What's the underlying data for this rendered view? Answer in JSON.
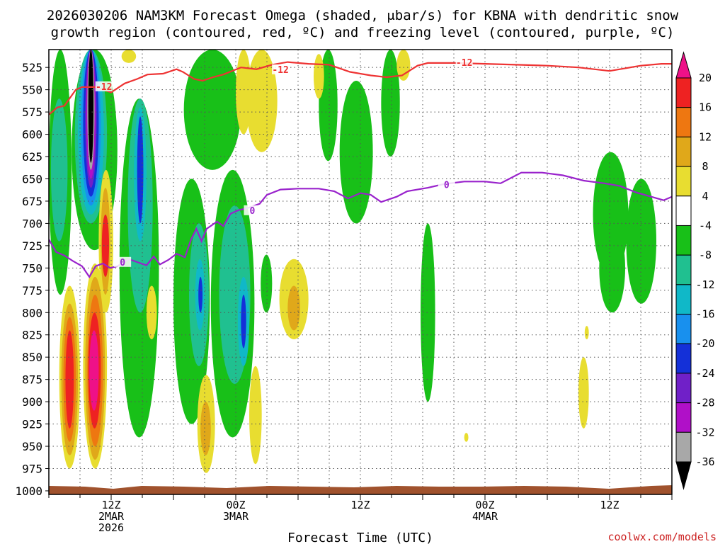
{
  "title": {
    "line1": "2026030206 NAM3KM Forecast Omega (shaded, μbar/s) for KBNA with dendritic snow",
    "line2": "growth region (contoured, red, ºC) and freezing level (contoured, purple, ºC)"
  },
  "credit": "coolwx.com/models",
  "chart_data": {
    "type": "heatmap",
    "title": "2026030206 NAM3KM Forecast Omega (shaded, μbar/s) for KBNA with dendritic snow growth region (contoured, red, ºC) and freezing level (contoured, purple, ºC)",
    "xlabel": "Forecast Time (UTC)",
    "ylabel": "",
    "x_range_hours": [
      0,
      60
    ],
    "x_ticks": [
      {
        "hour": 6,
        "lines": [
          "12Z",
          "2MAR",
          "2026"
        ]
      },
      {
        "hour": 18,
        "lines": [
          "00Z",
          "3MAR"
        ]
      },
      {
        "hour": 30,
        "lines": [
          "12Z"
        ]
      },
      {
        "hour": 42,
        "lines": [
          "00Z",
          "4MAR"
        ]
      },
      {
        "hour": 54,
        "lines": [
          "12Z"
        ]
      }
    ],
    "y_ticks": [
      525,
      550,
      575,
      600,
      625,
      650,
      675,
      700,
      725,
      750,
      775,
      800,
      825,
      850,
      875,
      900,
      925,
      950,
      975,
      1000
    ],
    "y_range_mb": [
      505,
      1004
    ],
    "grid": true,
    "colorbar": {
      "labels": [
        "20",
        "16",
        "12",
        "8",
        "4",
        "-4",
        "-8",
        "-12",
        "-16",
        "-20",
        "-24",
        "-28",
        "-32",
        "-36"
      ],
      "bands": [
        {
          "range": "> 20",
          "color": "#ee1188"
        },
        {
          "range": "16 to 20",
          "color": "#ee2222"
        },
        {
          "range": "12 to 16",
          "color": "#ee7711"
        },
        {
          "range": "8 to 12",
          "color": "#e0a81a"
        },
        {
          "range": "4 to 8",
          "color": "#e8dd30"
        },
        {
          "range": "-4 to 4",
          "color": "#ffffff"
        },
        {
          "range": "-8 to -4",
          "color": "#18c018"
        },
        {
          "range": "-12 to -8",
          "color": "#20c090"
        },
        {
          "range": "-16 to -12",
          "color": "#10b8c8"
        },
        {
          "range": "-20 to -16",
          "color": "#1890ee"
        },
        {
          "range": "-24 to -20",
          "color": "#1430d8"
        },
        {
          "range": "-28 to -24",
          "color": "#7020c8"
        },
        {
          "range": "-32 to -28",
          "color": "#b010c8"
        },
        {
          "range": "-36 to -32",
          "color": "#a8a8a8"
        },
        {
          "range": "< -36",
          "color": "#000000"
        }
      ]
    },
    "series": [
      {
        "name": "-12",
        "color": "#ee3333",
        "points": [
          [
            0,
            578
          ],
          [
            0.8,
            570
          ],
          [
            1.5,
            568
          ],
          [
            2.6,
            550
          ],
          [
            3.2,
            547
          ],
          [
            4.5,
            547
          ],
          [
            6.0,
            553
          ],
          [
            7.3,
            543
          ],
          [
            8.5,
            538
          ],
          [
            9.5,
            533
          ],
          [
            11.0,
            532
          ],
          [
            12.3,
            527
          ],
          [
            12.9,
            530
          ],
          [
            14.0,
            538
          ],
          [
            14.8,
            540
          ],
          [
            15.8,
            536
          ],
          [
            16.8,
            533
          ],
          [
            18.5,
            525
          ],
          [
            20.0,
            527
          ],
          [
            21.5,
            522
          ],
          [
            23.0,
            519
          ],
          [
            25.0,
            521
          ],
          [
            27.0,
            522
          ],
          [
            29.0,
            530
          ],
          [
            31.0,
            534
          ],
          [
            32.5,
            536
          ],
          [
            34.0,
            534
          ],
          [
            35.5,
            523
          ],
          [
            36.5,
            520
          ],
          [
            39.0,
            520
          ],
          [
            42.0,
            521
          ],
          [
            45.0,
            522
          ],
          [
            48.0,
            523
          ],
          [
            51.0,
            525
          ],
          [
            54.0,
            529
          ],
          [
            55.5,
            526
          ],
          [
            57.0,
            523
          ],
          [
            59.0,
            521
          ],
          [
            60.0,
            521
          ]
        ],
        "label_positions": [
          [
            5.3,
            547
          ],
          [
            22.3,
            528
          ],
          [
            40.0,
            520
          ]
        ]
      },
      {
        "name": "0",
        "color": "#9922cc",
        "points": [
          [
            0,
            718
          ],
          [
            0.7,
            732
          ],
          [
            1.5,
            736
          ],
          [
            2.3,
            742
          ],
          [
            3.2,
            748
          ],
          [
            3.9,
            760
          ],
          [
            4.5,
            748
          ],
          [
            5.2,
            745
          ],
          [
            5.9,
            750
          ],
          [
            6.6,
            748
          ],
          [
            7.7,
            740
          ],
          [
            8.9,
            745
          ],
          [
            9.4,
            747
          ],
          [
            10.1,
            737
          ],
          [
            10.7,
            746
          ],
          [
            11.5,
            741
          ],
          [
            12.3,
            734
          ],
          [
            13.1,
            738
          ],
          [
            13.7,
            718
          ],
          [
            14.2,
            706
          ],
          [
            14.7,
            720
          ],
          [
            15.2,
            706
          ],
          [
            16.2,
            698
          ],
          [
            16.8,
            703
          ],
          [
            17.5,
            689
          ],
          [
            18.3,
            685
          ],
          [
            19.1,
            683
          ],
          [
            20.3,
            678
          ],
          [
            21.0,
            668
          ],
          [
            22.3,
            662
          ],
          [
            24.0,
            661
          ],
          [
            26.0,
            661
          ],
          [
            27.5,
            664
          ],
          [
            28.8,
            672
          ],
          [
            30.0,
            666
          ],
          [
            31.0,
            668
          ],
          [
            32.0,
            676
          ],
          [
            33.5,
            670
          ],
          [
            34.5,
            664
          ],
          [
            36.5,
            660
          ],
          [
            38.0,
            656
          ],
          [
            40.0,
            653
          ],
          [
            42.0,
            653
          ],
          [
            43.5,
            655
          ],
          [
            45.5,
            643
          ],
          [
            47.5,
            643
          ],
          [
            49.5,
            646
          ],
          [
            51.5,
            652
          ],
          [
            53.5,
            655
          ],
          [
            55.0,
            658
          ],
          [
            56.5,
            665
          ],
          [
            58.0,
            670
          ],
          [
            59.2,
            674
          ],
          [
            60.0,
            670
          ]
        ],
        "label_positions": [
          [
            7.1,
            744
          ],
          [
            19.6,
            686
          ],
          [
            38.3,
            657
          ]
        ]
      }
    ]
  }
}
